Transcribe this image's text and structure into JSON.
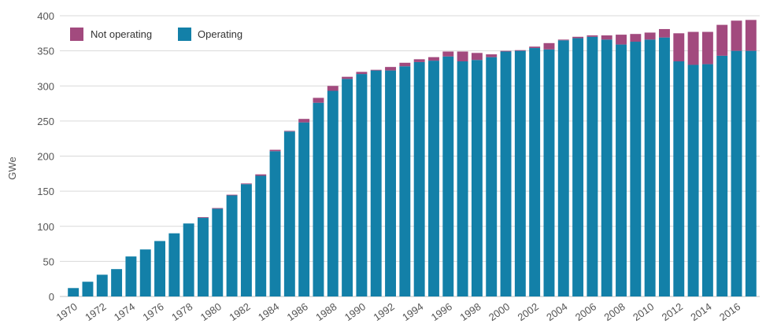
{
  "chart_data": {
    "type": "bar",
    "stacked": true,
    "ylabel": "GWe",
    "xlabel": "",
    "title": "",
    "ylim": [
      0,
      400
    ],
    "yticks": [
      0,
      50,
      100,
      150,
      200,
      250,
      300,
      350,
      400
    ],
    "grid": "horizontal",
    "legend_position": "top-left",
    "categories": [
      "1970",
      "1971",
      "1972",
      "1973",
      "1974",
      "1975",
      "1976",
      "1977",
      "1978",
      "1979",
      "1980",
      "1981",
      "1982",
      "1983",
      "1984",
      "1985",
      "1986",
      "1987",
      "1988",
      "1989",
      "1990",
      "1991",
      "1992",
      "1993",
      "1994",
      "1995",
      "1996",
      "1997",
      "1998",
      "1999",
      "2000",
      "2001",
      "2002",
      "2003",
      "2004",
      "2005",
      "2006",
      "2007",
      "2008",
      "2009",
      "2010",
      "2011",
      "2012",
      "2013",
      "2014",
      "2015",
      "2016",
      "2017"
    ],
    "xtick_labels": [
      "1970",
      "1972",
      "1974",
      "1976",
      "1978",
      "1980",
      "1982",
      "1984",
      "1986",
      "1988",
      "1990",
      "1992",
      "1994",
      "1996",
      "1998",
      "2000",
      "2002",
      "2004",
      "2006",
      "2008",
      "2010",
      "2012",
      "2014",
      "2016"
    ],
    "series": [
      {
        "name": "Operating",
        "color": "#1380a8",
        "values": [
          12,
          21,
          31,
          39,
          57,
          67,
          79,
          90,
          104,
          112,
          125,
          144,
          160,
          172,
          207,
          235,
          248,
          276,
          293,
          310,
          317,
          322,
          322,
          328,
          334,
          336,
          342,
          335,
          337,
          341,
          349,
          350,
          354,
          352,
          365,
          368,
          370,
          366,
          359,
          363,
          366,
          369,
          335,
          330,
          331,
          343,
          350,
          350
        ]
      },
      {
        "name": "Not operating",
        "color": "#a24a7e",
        "values": [
          0,
          0,
          0,
          0,
          0,
          0,
          0,
          0,
          0,
          1,
          1,
          1,
          1,
          2,
          2,
          1,
          5,
          7,
          7,
          3,
          3,
          1,
          5,
          5,
          4,
          5,
          7,
          14,
          10,
          4,
          1,
          1,
          2,
          9,
          1,
          2,
          2,
          6,
          14,
          11,
          10,
          12,
          40,
          47,
          46,
          44,
          43,
          44
        ]
      }
    ],
    "legend": [
      {
        "label": "Not operating",
        "color": "#a24a7e"
      },
      {
        "label": "Operating",
        "color": "#1380a8"
      }
    ]
  }
}
